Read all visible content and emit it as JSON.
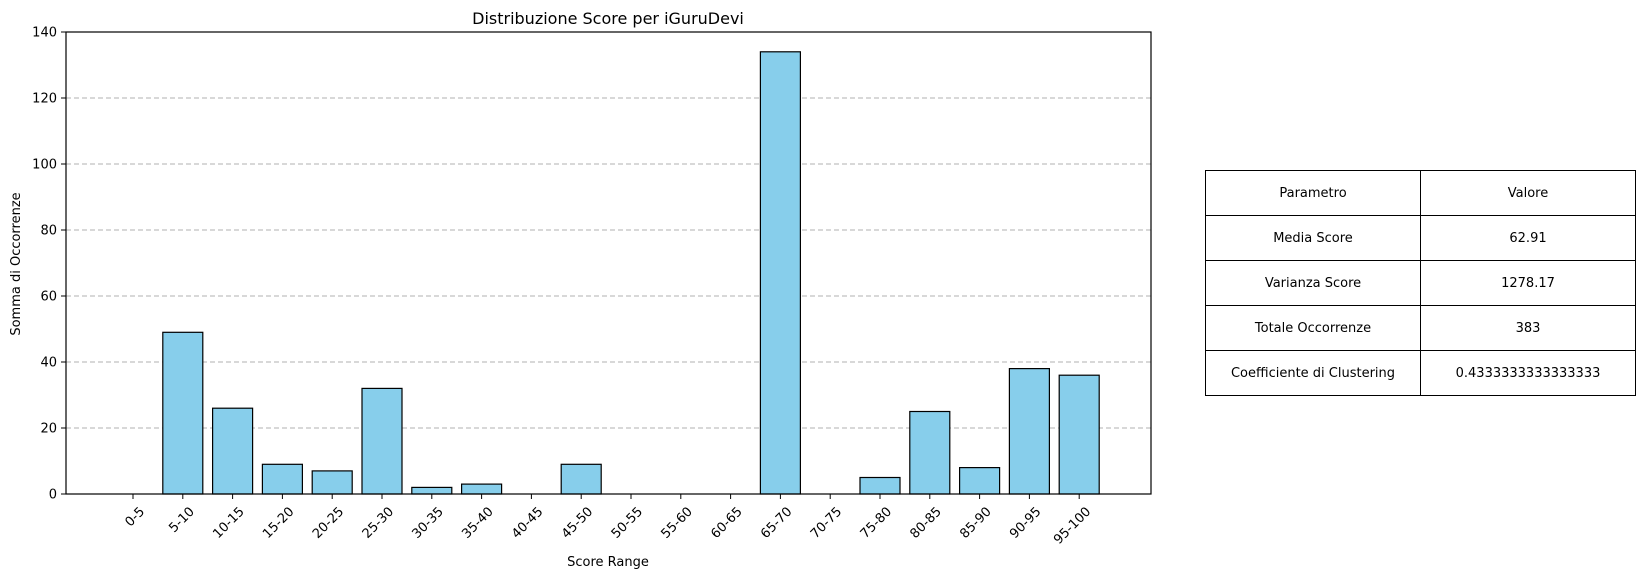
{
  "chart_data": {
    "type": "bar",
    "title": "Distribuzione Score per iGuruDevi",
    "xlabel": "Score Range",
    "ylabel": "Somma di Occorrenze",
    "categories": [
      "0-5",
      "5-10",
      "10-15",
      "15-20",
      "20-25",
      "25-30",
      "30-35",
      "35-40",
      "40-45",
      "45-50",
      "50-55",
      "55-60",
      "60-65",
      "65-70",
      "70-75",
      "75-80",
      "80-85",
      "85-90",
      "90-95",
      "95-100"
    ],
    "values": [
      0,
      49,
      26,
      9,
      7,
      32,
      2,
      3,
      0,
      9,
      0,
      0,
      0,
      134,
      0,
      5,
      25,
      8,
      38,
      36
    ],
    "ylim": [
      0,
      140
    ],
    "yticks": [
      0,
      20,
      40,
      60,
      80,
      100,
      120,
      140
    ],
    "grid": "y",
    "bar_color": "#87ceeb",
    "edge_color": "#000000"
  },
  "table": {
    "header": [
      "Parametro",
      "Valore"
    ],
    "rows": [
      [
        "Media Score",
        "62.91"
      ],
      [
        "Varianza Score",
        "1278.17"
      ],
      [
        "Totale Occorrenze",
        "383"
      ],
      [
        "Coefficiente di Clustering",
        "0.4333333333333333"
      ]
    ]
  }
}
